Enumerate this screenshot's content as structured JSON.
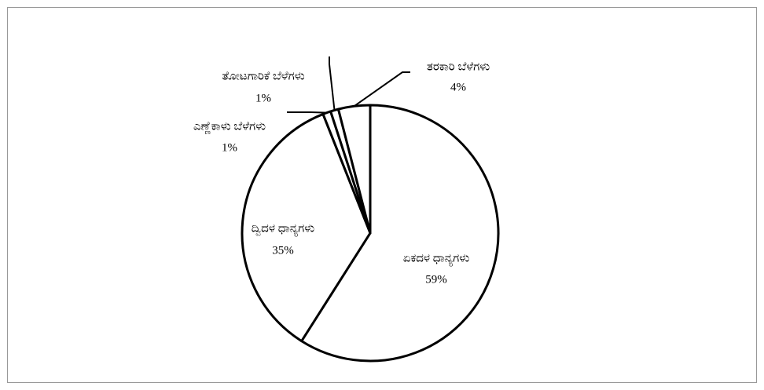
{
  "chart_data": {
    "type": "pie",
    "categories": [
      "ಏಕದಳ ಧಾನ್ಯಗಳು",
      "ದ್ವಿದಳ ಧಾನ್ಯಗಳು",
      "ಎಣ್ಣೆಕಾಳು ಬೆಳೆಗಳು",
      "ತೋಟಗಾರಿಕೆ ಬೆಳೆಗಳು",
      "ತರಕಾರಿ ಬೆಳೆಗಳು"
    ],
    "values": [
      59,
      35,
      1,
      1,
      4
    ],
    "value_labels": [
      "59%",
      "35%",
      "1%",
      "1%",
      "4%"
    ],
    "color": "#ffffff"
  }
}
